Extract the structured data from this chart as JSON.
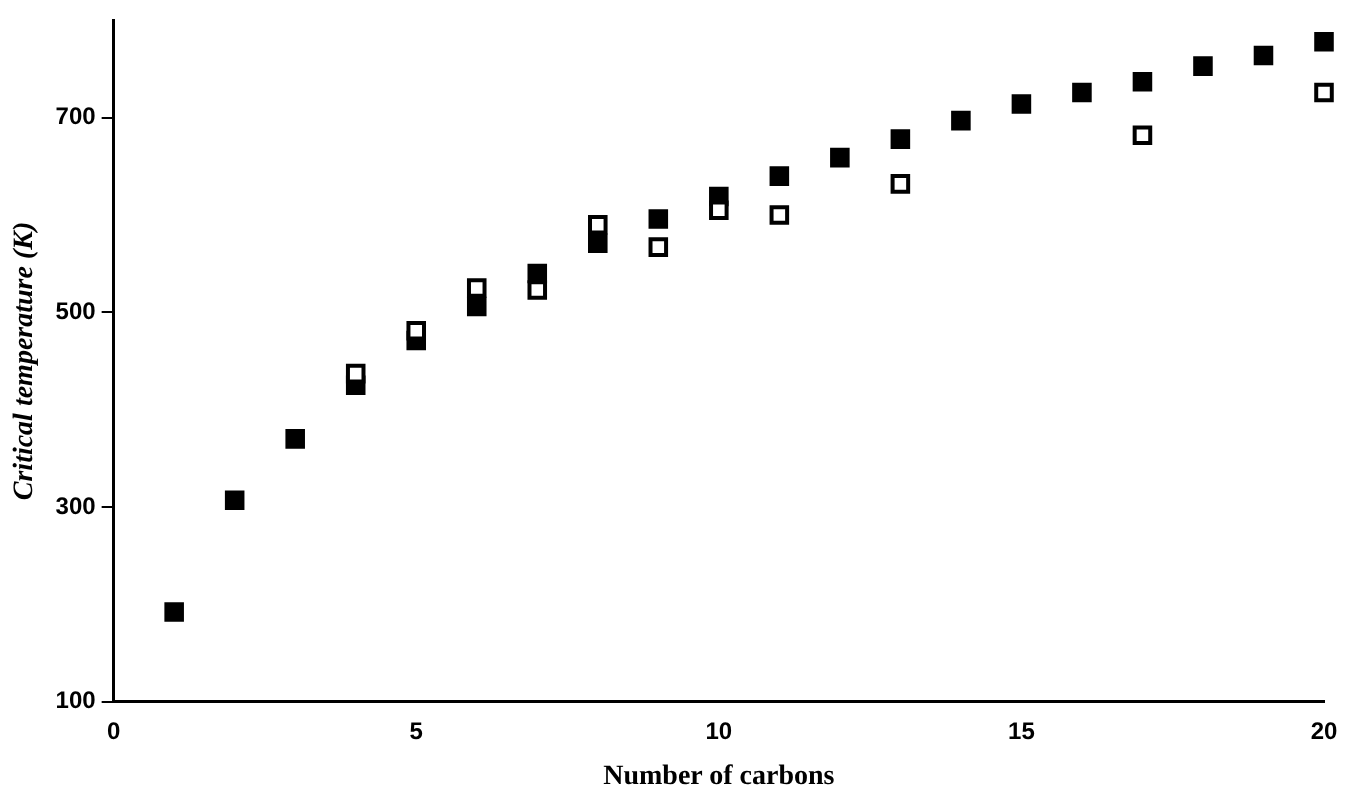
{
  "chart_data": {
    "type": "scatter",
    "xlabel": "Number of carbons",
    "ylabel": "Critical temperature (K)",
    "xlim": [
      0,
      20
    ],
    "xticks": [
      0,
      5,
      10,
      15,
      20
    ],
    "ylim": [
      100,
      800
    ],
    "yticks": [
      100,
      300,
      500,
      700
    ],
    "grid": false,
    "legend": false,
    "marker": "square",
    "series": [
      {
        "color": "#000000",
        "x": [
          1,
          2,
          3,
          4,
          5,
          6,
          7,
          8,
          9,
          10,
          11,
          12,
          13,
          14,
          15,
          16,
          17,
          18,
          19,
          20
        ],
        "values": [
          192,
          307,
          370,
          425,
          471,
          506,
          540,
          571,
          596,
          619,
          640,
          659,
          678,
          697,
          714,
          726,
          737,
          753,
          764,
          778
        ]
      },
      {
        "color": "#000000",
        "x": [
          4,
          5,
          6,
          7,
          8,
          9,
          10,
          11,
          13,
          17,
          20
        ],
        "values": [
          437,
          481,
          525,
          523,
          590,
          567,
          605,
          600,
          632,
          682,
          726
        ]
      }
    ]
  }
}
